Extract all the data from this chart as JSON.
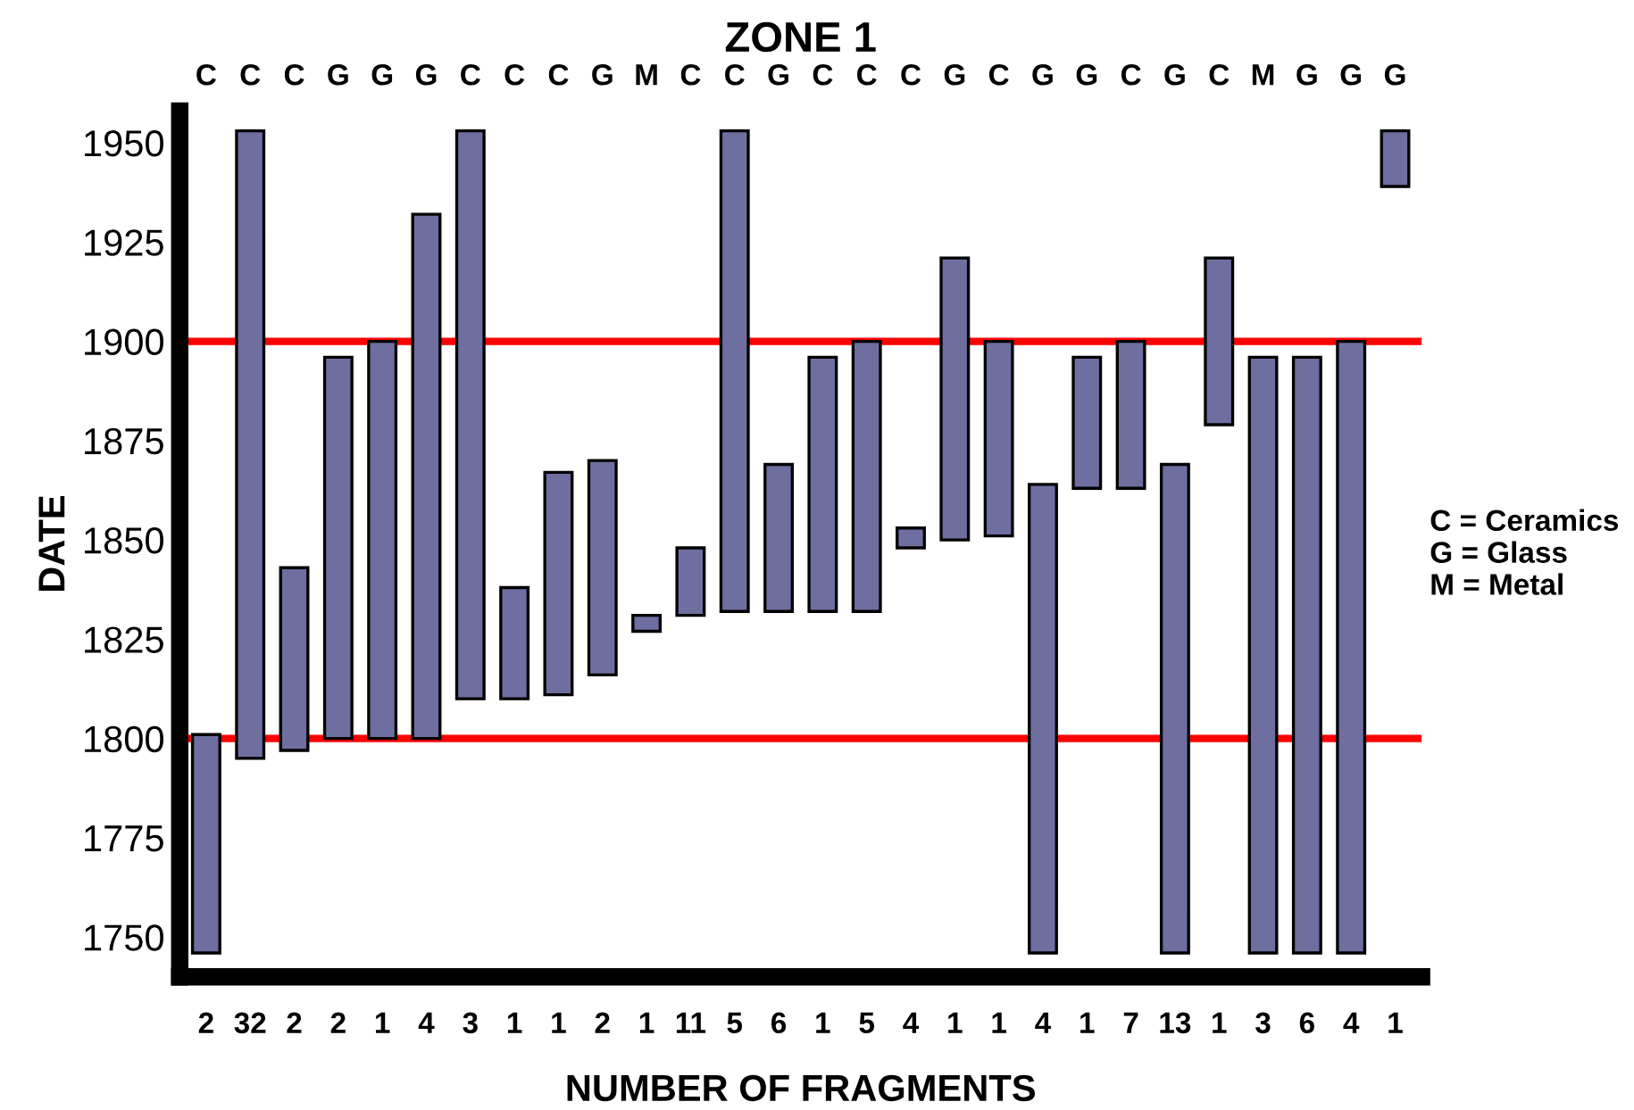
{
  "chart_data": {
    "type": "bar",
    "title": "ZONE 1",
    "xlabel": "NUMBER OF FRAGMENTS",
    "ylabel": "DATE",
    "categories": [
      "2",
      "32",
      "2",
      "2",
      "1",
      "4",
      "3",
      "1",
      "1",
      "2",
      "1",
      "11",
      "5",
      "6",
      "1",
      "5",
      "4",
      "1",
      "1",
      "4",
      "1",
      "7",
      "13",
      "1",
      "3",
      "6",
      "4",
      "1"
    ],
    "base": [
      1746,
      1795,
      1797,
      1800,
      1800,
      1800,
      1810,
      1810,
      1811,
      1816,
      1827,
      1831,
      1832,
      1832,
      1832,
      1832,
      1848,
      1850,
      1851,
      1746,
      1863,
      1863,
      1746,
      1879,
      1746,
      1746,
      1746,
      1939
    ],
    "values": [
      55,
      158,
      46,
      96,
      100,
      132,
      143,
      28,
      56,
      54,
      4,
      17,
      121,
      37,
      64,
      68,
      5,
      71,
      49,
      118,
      33,
      37,
      123,
      42,
      150,
      150,
      154,
      14
    ],
    "color": "#6e6ea0",
    "ylim": [
      1740,
      1958
    ],
    "yticks": [
      1750,
      1775,
      1800,
      1825,
      1850,
      1875,
      1900,
      1925,
      1950
    ],
    "grid": false,
    "legend": false,
    "ref_lines": [
      {
        "axis": "y",
        "value": 1800,
        "color": "#ff0000"
      },
      {
        "axis": "y",
        "value": 1900,
        "color": "#ff0000"
      }
    ],
    "annotations": [
      "C",
      "C",
      "C",
      "G",
      "G",
      "G",
      "C",
      "C",
      "C",
      "G",
      "M",
      "C",
      "C",
      "G",
      "C",
      "C",
      "C",
      "G",
      "C",
      "G",
      "G",
      "C",
      "G",
      "C",
      "M",
      "G",
      "G",
      "G",
      "C = Ceramics\nG = Glass\nM = Metal"
    ]
  }
}
